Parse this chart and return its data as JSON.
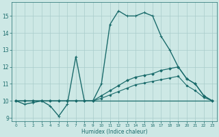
{
  "xlabel": "Humidex (Indice chaleur)",
  "xlim": [
    -0.5,
    23.5
  ],
  "ylim": [
    8.8,
    15.8
  ],
  "yticks": [
    9,
    10,
    11,
    12,
    13,
    14,
    15
  ],
  "xticks": [
    0,
    1,
    2,
    3,
    4,
    5,
    6,
    7,
    8,
    9,
    10,
    11,
    12,
    13,
    14,
    15,
    16,
    17,
    18,
    19,
    20,
    21,
    22,
    23
  ],
  "bg_color": "#cde8e5",
  "grid_color": "#a8ccca",
  "line_color": "#1a6b6b",
  "series": [
    {
      "x": [
        0,
        1,
        2,
        3,
        4,
        5,
        6,
        7,
        8,
        9,
        10,
        11,
        12,
        13,
        14,
        15,
        16,
        17,
        18,
        19,
        20,
        21,
        22,
        23
      ],
      "y": [
        10.0,
        9.8,
        9.9,
        10.0,
        9.7,
        9.1,
        9.8,
        12.6,
        10.0,
        10.0,
        11.0,
        14.5,
        15.3,
        15.0,
        15.0,
        15.2,
        15.0,
        13.8,
        13.0,
        12.0,
        11.3,
        11.0,
        10.3,
        10.0
      ],
      "marker": "+",
      "markersize": 3.5,
      "linewidth": 1.0
    },
    {
      "x": [
        0,
        1,
        2,
        3,
        4,
        5,
        6,
        7,
        8,
        9,
        10,
        11,
        12,
        13,
        14,
        15,
        16,
        17,
        18,
        19,
        20,
        21,
        22,
        23
      ],
      "y": [
        10.0,
        10.0,
        10.0,
        10.0,
        10.0,
        10.0,
        10.0,
        10.0,
        10.0,
        10.0,
        10.3,
        10.6,
        10.9,
        11.2,
        11.4,
        11.5,
        11.6,
        11.8,
        11.9,
        12.0,
        11.3,
        11.0,
        10.3,
        10.0
      ],
      "marker": "D",
      "markersize": 1.8,
      "linewidth": 0.9
    },
    {
      "x": [
        0,
        23
      ],
      "y": [
        10.0,
        10.0
      ],
      "marker": null,
      "markersize": 0,
      "linewidth": 0.9
    },
    {
      "x": [
        0,
        1,
        2,
        3,
        4,
        5,
        6,
        7,
        8,
        9,
        10,
        11,
        12,
        13,
        14,
        15,
        16,
        17,
        18,
        19,
        20,
        21,
        22,
        23
      ],
      "y": [
        10.0,
        10.0,
        10.0,
        10.0,
        10.0,
        10.0,
        10.0,
        10.0,
        10.0,
        10.0,
        10.15,
        10.35,
        10.55,
        10.75,
        10.95,
        11.05,
        11.15,
        11.25,
        11.35,
        11.45,
        10.9,
        10.6,
        10.2,
        10.0
      ],
      "marker": "D",
      "markersize": 1.5,
      "linewidth": 0.8
    }
  ]
}
